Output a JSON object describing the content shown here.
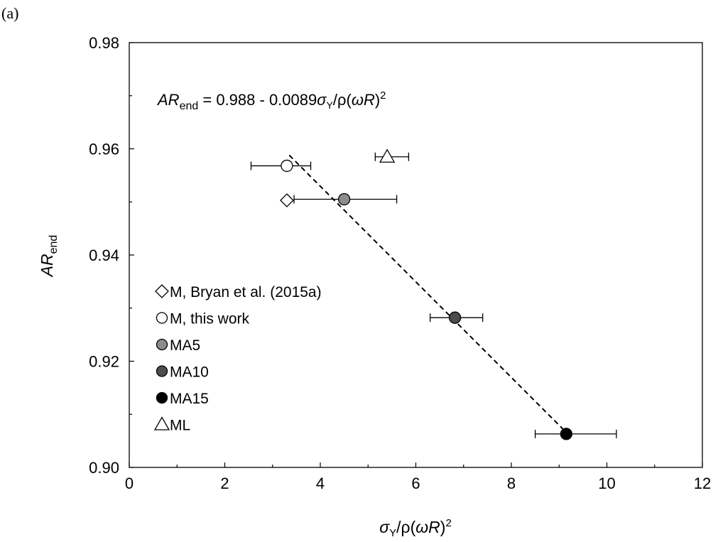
{
  "panel_label": "(a)",
  "chart_data": {
    "type": "scatter",
    "xlabel": {
      "main": "σ",
      "sub": "Y",
      "rest": "/ρ(",
      "it2": "ωR",
      "close": ")",
      "sup": "2"
    },
    "ylabel": {
      "main": "AR",
      "sub": "end"
    },
    "xlim": [
      0,
      12
    ],
    "ylim": [
      0.9,
      0.98
    ],
    "x_ticks": [
      "0",
      "2",
      "4",
      "6",
      "8",
      "10",
      "12"
    ],
    "y_ticks": [
      "0.90",
      "0.92",
      "0.94",
      "0.96",
      "0.98"
    ],
    "grid": false,
    "legend_placement": "lower-left",
    "equation": {
      "lhs": "AR",
      "lhs_sub": "end",
      "mid": " = 0.988 - 0.0089",
      "sigma": "σ",
      "sigma_sub": "Y",
      "rest": "/ρ(",
      "wr": "ωR",
      "close": ")",
      "sup": "2"
    },
    "series": [
      {
        "name": "M, Bryan et al. (2015a)",
        "marker": "diamond",
        "fill": "#ffffff",
        "x": 3.3,
        "y": 0.9503
      },
      {
        "name": "M, this work",
        "marker": "circle",
        "fill": "#ffffff",
        "x": 3.3,
        "y": 0.9568,
        "xerr": [
          2.55,
          3.8
        ]
      },
      {
        "name": "MA5",
        "marker": "circle",
        "fill": "#8c8c8c",
        "x": 4.5,
        "y": 0.9505,
        "xerr": [
          3.45,
          5.6
        ]
      },
      {
        "name": "MA10",
        "marker": "circle",
        "fill": "#4d4d4d",
        "x": 6.82,
        "y": 0.9282,
        "xerr": [
          6.3,
          7.4
        ]
      },
      {
        "name": "MA15",
        "marker": "circle",
        "fill": "#000000",
        "x": 9.15,
        "y": 0.9063,
        "xerr": [
          8.5,
          10.2
        ]
      },
      {
        "name": "ML",
        "marker": "triangle",
        "fill": "#ffffff",
        "x": 5.4,
        "y": 0.9585,
        "xerr": [
          5.15,
          5.85
        ]
      }
    ],
    "fit_line": {
      "style": "dashed",
      "x": [
        3.35,
        9.15
      ],
      "y": [
        0.9588,
        0.9066
      ]
    }
  }
}
